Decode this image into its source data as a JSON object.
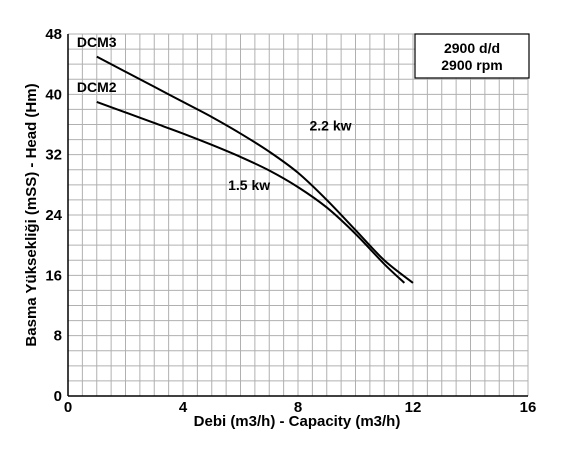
{
  "chart_data": {
    "type": "line",
    "xlabel": "Debi (m3/h) - Capacity (m3/h)",
    "ylabel": "Basma Yüksekliği (mSS) - Head (Hm)",
    "xlim": [
      0,
      16
    ],
    "ylim": [
      0,
      48
    ],
    "x_grid_step": 0.5,
    "y_grid_step": 2,
    "x_ticks": [
      0,
      4,
      8,
      12,
      16
    ],
    "y_ticks": [
      0,
      8,
      16,
      24,
      32,
      40,
      48
    ],
    "grid": true,
    "speed_box": {
      "line1": "2900 d/d",
      "line2": "2900 rpm"
    },
    "series": [
      {
        "name": "DCM3",
        "power": "2.2 kw",
        "x": [
          1,
          2,
          3,
          4,
          5,
          6,
          7,
          8,
          9,
          10,
          11,
          12
        ],
        "values": [
          45,
          43,
          41,
          39,
          37,
          34.8,
          32.4,
          29.6,
          26,
          22,
          18,
          15
        ]
      },
      {
        "name": "DCM2",
        "power": "1.5 kw",
        "x": [
          1,
          2,
          3,
          4,
          5,
          6,
          7,
          8,
          9,
          10,
          11,
          11.7
        ],
        "values": [
          39,
          37.6,
          36.2,
          34.8,
          33.3,
          31.7,
          29.9,
          27.7,
          25,
          21.5,
          17.5,
          15
        ]
      }
    ]
  }
}
